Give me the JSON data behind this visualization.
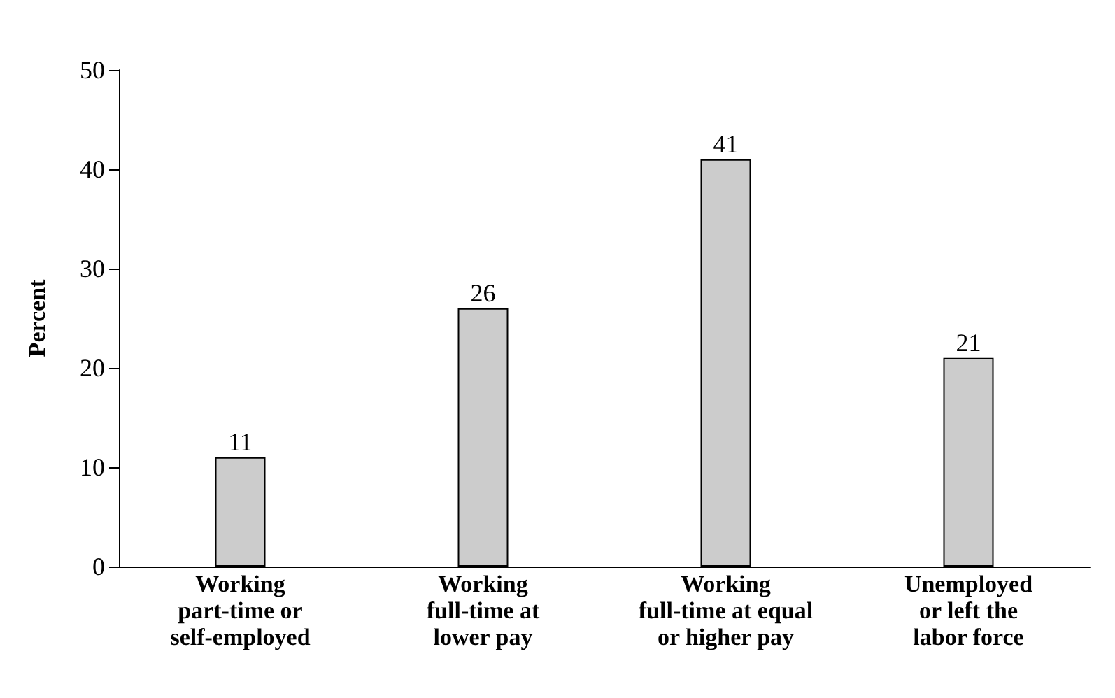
{
  "chart_data": {
    "type": "bar",
    "ylabel": "Percent",
    "categories": [
      "Working\npart-time or\nself-employed",
      "Working\nfull-time at\nlower pay",
      "Working\nfull-time at equal\nor higher pay",
      "Unemployed\nor left the\nlabor force"
    ],
    "values": [
      11,
      26,
      41,
      21
    ],
    "color": "#cccccc",
    "ylim": [
      0,
      50
    ],
    "yticks": [
      0,
      10,
      20,
      30,
      40,
      50
    ],
    "grid": false,
    "data_labels": true
  }
}
